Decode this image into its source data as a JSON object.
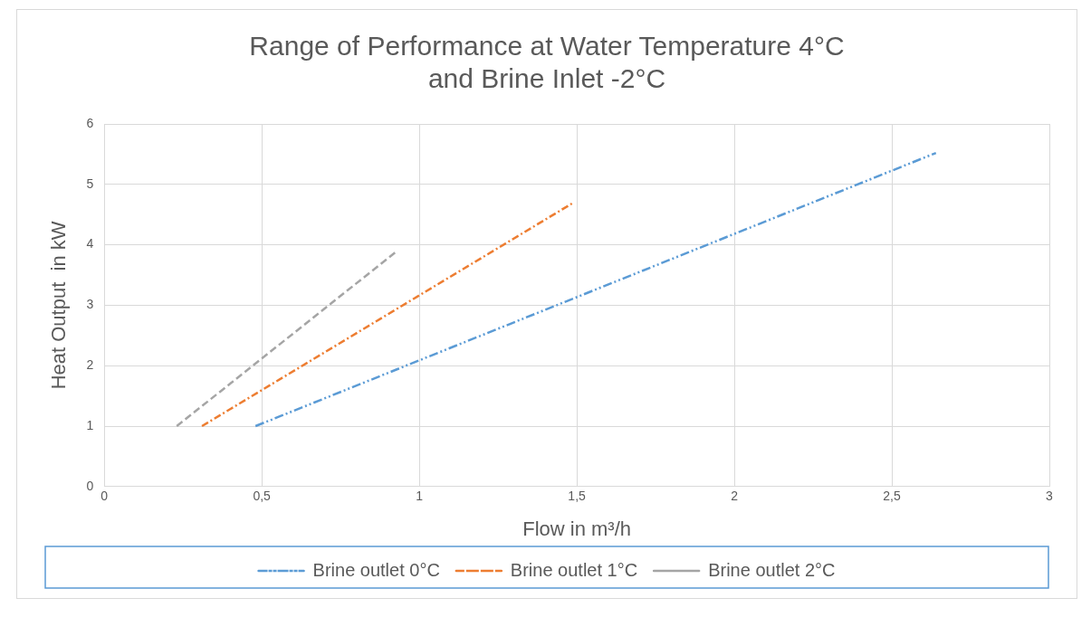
{
  "chart_data": {
    "type": "line",
    "title": "Range of Performance at Water Temperature 4°C\nand Brine Inlet -2°C",
    "xlabel": "Flow in m³/h",
    "ylabel": "Heat Output  in kW",
    "series": [
      {
        "name": "Brine outlet 0°C",
        "color": "#5b9bd5",
        "line_style": "dashdotdot",
        "x": [
          0.48,
          2.64
        ],
        "values": [
          1,
          5.52
        ]
      },
      {
        "name": "Brine outlet 1°C",
        "color": "#ed7d31",
        "line_style": "dashdot",
        "x": [
          0.31,
          1.49
        ],
        "values": [
          1,
          4.7
        ]
      },
      {
        "name": "Brine outlet 2°C",
        "color": "#a5a5a5",
        "line_style": "dashed",
        "x": [
          0.23,
          0.93
        ],
        "values": [
          1,
          3.9
        ]
      }
    ],
    "xlim": [
      0,
      3
    ],
    "xticks": [
      0,
      {
        "value": 0.5,
        "label": "0,5"
      },
      1,
      {
        "value": 1.5,
        "label": "1,5"
      },
      2,
      {
        "value": 2.5,
        "label": "2,5"
      },
      3
    ],
    "ylim": [
      0,
      6
    ],
    "yticks": [
      0,
      1,
      2,
      3,
      4,
      5,
      6
    ],
    "grid": true,
    "legend": "bottom",
    "marker": "none"
  }
}
